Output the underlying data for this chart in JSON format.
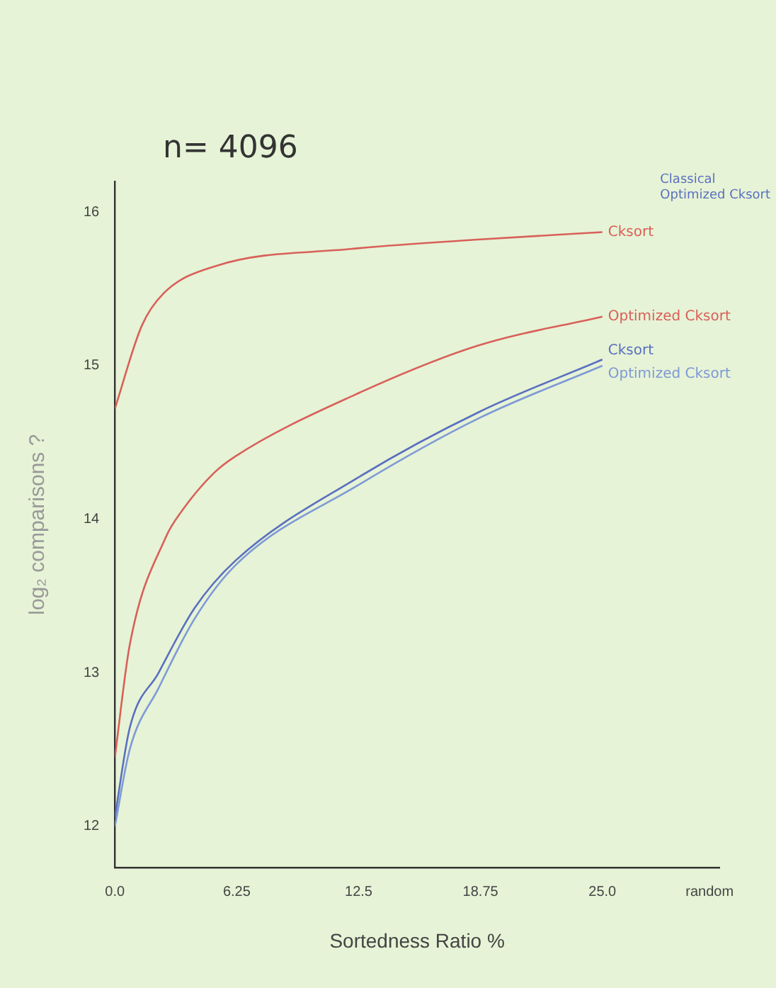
{
  "chart_data": {
    "type": "line",
    "title": "n= 4096",
    "xlabel": "Sortedness Ratio %",
    "ylabel": "log₂ comparisons ?",
    "xlim": [
      0,
      31
    ],
    "xticks": [
      {
        "value": 0,
        "label": "0.0"
      },
      6.25,
      12.5,
      18.75,
      {
        "value": 25,
        "label": "25.0"
      },
      {
        "value": 30.5,
        "label": "random"
      }
    ],
    "ylim": [
      11.73,
      16.2
    ],
    "yticks": [
      12,
      13,
      14,
      15,
      16
    ],
    "grid": false,
    "legend": false,
    "marker": "none",
    "line_style": "solid",
    "annotations": [
      "Classical",
      "Optimized Cksort"
    ],
    "series": [
      {
        "name": "Cksort",
        "color": "#d9605a",
        "x": [
          0,
          1.38,
          2.49,
          5.19,
          12.08,
          18.45,
          25
        ],
        "values": [
          14.72,
          15.26,
          15.47,
          15.65,
          15.76,
          15.82,
          15.87
        ]
      },
      {
        "name": "Optimized Cksort",
        "color": "#d9605a",
        "x": [
          0,
          0.76,
          2.6,
          3.47,
          5.07,
          6.18,
          12.3,
          18.6,
          25
        ],
        "values": [
          12.45,
          13.18,
          13.88,
          14.06,
          14.3,
          14.41,
          14.81,
          15.13,
          15.32
        ]
      },
      {
        "name": "Cksort",
        "color": "#5a6fc0",
        "x": [
          0,
          0.76,
          2.24,
          4.08,
          6.18,
          12.45,
          18.7,
          25
        ],
        "values": [
          12.06,
          12.64,
          13.0,
          13.42,
          13.73,
          14.27,
          14.7,
          15.04
        ]
      },
      {
        "name": "Optimized Cksort",
        "color": "#7f9ad6",
        "x": [
          0,
          0.76,
          2.24,
          4.08,
          6.18,
          12.45,
          18.7,
          25
        ],
        "values": [
          12.0,
          12.5,
          12.9,
          13.35,
          13.7,
          14.22,
          14.66,
          15.0
        ]
      }
    ]
  }
}
